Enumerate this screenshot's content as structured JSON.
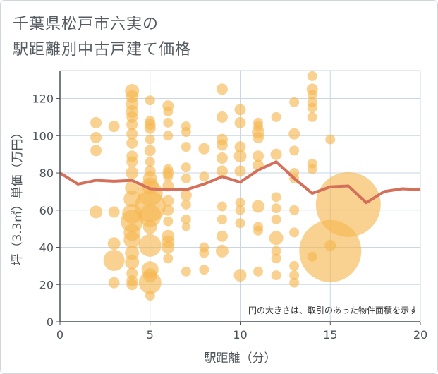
{
  "title_line1": "千葉県松戸市六実の",
  "title_line2": "駅距離別中古戸建て価格",
  "chart_data": {
    "type": "scatter",
    "xlabel": "駅距離（分）",
    "ylabel": "坪（3.3㎡）単価（万円）",
    "xlim": [
      0,
      20
    ],
    "ylim": [
      0,
      135
    ],
    "xticks": [
      0,
      5,
      10,
      15,
      20
    ],
    "yticks": [
      0,
      20,
      40,
      60,
      80,
      100,
      120
    ],
    "grid": true,
    "annotation": "円の大きさは、取引のあった物件面積を示す",
    "colors": {
      "bubble": "#f5b74f",
      "line": "#d4705a",
      "grid": "#c9d7e2",
      "axis": "#4a5057"
    },
    "bubbles": [
      [
        2,
        107,
        8
      ],
      [
        2,
        99,
        8
      ],
      [
        2,
        92,
        8
      ],
      [
        2,
        59,
        9
      ],
      [
        3,
        105,
        8
      ],
      [
        3,
        59,
        8
      ],
      [
        3,
        42,
        9
      ],
      [
        3,
        33,
        15
      ],
      [
        3,
        21,
        8
      ],
      [
        4,
        124,
        10
      ],
      [
        4,
        121,
        9
      ],
      [
        4,
        117,
        9
      ],
      [
        4,
        113,
        9
      ],
      [
        4,
        110,
        8
      ],
      [
        4,
        106,
        8
      ],
      [
        4,
        101,
        8
      ],
      [
        4,
        96,
        8
      ],
      [
        4,
        89,
        8
      ],
      [
        4,
        86,
        8
      ],
      [
        4,
        80,
        9
      ],
      [
        4,
        72,
        10
      ],
      [
        4,
        66,
        12
      ],
      [
        4,
        58,
        14
      ],
      [
        4,
        54,
        16
      ],
      [
        4,
        48,
        12
      ],
      [
        4,
        44,
        12
      ],
      [
        4,
        37,
        10
      ],
      [
        4,
        32,
        10
      ],
      [
        4,
        26,
        8
      ],
      [
        4,
        22,
        8
      ],
      [
        4,
        20,
        8
      ],
      [
        5,
        119,
        7
      ],
      [
        5,
        108,
        7
      ],
      [
        5,
        106,
        8
      ],
      [
        5,
        104,
        8
      ],
      [
        5,
        98,
        7
      ],
      [
        5,
        92,
        8
      ],
      [
        5,
        86,
        7
      ],
      [
        5,
        81,
        8
      ],
      [
        5,
        77,
        10
      ],
      [
        5,
        73,
        12
      ],
      [
        5,
        69,
        18
      ],
      [
        5,
        62,
        22
      ],
      [
        5,
        57,
        16
      ],
      [
        5,
        51,
        10
      ],
      [
        5,
        41,
        16
      ],
      [
        5,
        28,
        12
      ],
      [
        5,
        25,
        10
      ],
      [
        5,
        21,
        16
      ],
      [
        5,
        14,
        7
      ],
      [
        6,
        116,
        8
      ],
      [
        6,
        113,
        7
      ],
      [
        6,
        107,
        7
      ],
      [
        6,
        100,
        7
      ],
      [
        6,
        82,
        7
      ],
      [
        6,
        80,
        8
      ],
      [
        6,
        78,
        7
      ],
      [
        6,
        73,
        8
      ],
      [
        6,
        65,
        8
      ],
      [
        6,
        60,
        8
      ],
      [
        6,
        54,
        7
      ],
      [
        6,
        46,
        9
      ],
      [
        6,
        43,
        9
      ],
      [
        6,
        40,
        9
      ],
      [
        6,
        34,
        7
      ],
      [
        7,
        105,
        7
      ],
      [
        7,
        102,
        7
      ],
      [
        7,
        94,
        7
      ],
      [
        7,
        83,
        7
      ],
      [
        7,
        77,
        7
      ],
      [
        7,
        68,
        8
      ],
      [
        7,
        63,
        7
      ],
      [
        7,
        55,
        7
      ],
      [
        7,
        51,
        6
      ],
      [
        7,
        27,
        7
      ],
      [
        8,
        93,
        8
      ],
      [
        8,
        78,
        7
      ],
      [
        8,
        40,
        7
      ],
      [
        8,
        37,
        7
      ],
      [
        8,
        28,
        7
      ],
      [
        9,
        125,
        8
      ],
      [
        9,
        110,
        8
      ],
      [
        9,
        98,
        8
      ],
      [
        9,
        95,
        8
      ],
      [
        9,
        88,
        8
      ],
      [
        9,
        81,
        8
      ],
      [
        9,
        62,
        7
      ],
      [
        9,
        55,
        7
      ],
      [
        9,
        46,
        8
      ],
      [
        9,
        38,
        9
      ],
      [
        10,
        114,
        8
      ],
      [
        10,
        107,
        8
      ],
      [
        10,
        94,
        8
      ],
      [
        10,
        89,
        9
      ],
      [
        10,
        81,
        8
      ],
      [
        10,
        64,
        7
      ],
      [
        10,
        60,
        7
      ],
      [
        10,
        53,
        7
      ],
      [
        10,
        25,
        9
      ],
      [
        11,
        107,
        7
      ],
      [
        11,
        105,
        7
      ],
      [
        11,
        102,
        9
      ],
      [
        11,
        99,
        8
      ],
      [
        11,
        89,
        8
      ],
      [
        11,
        84,
        8
      ],
      [
        11,
        62,
        9
      ],
      [
        11,
        51,
        7
      ],
      [
        11,
        49,
        7
      ],
      [
        11,
        27,
        7
      ],
      [
        12,
        110,
        7
      ],
      [
        12,
        90,
        8
      ],
      [
        12,
        67,
        7
      ],
      [
        12,
        61,
        7
      ],
      [
        12,
        55,
        7
      ],
      [
        12,
        45,
        10
      ],
      [
        12,
        38,
        7
      ],
      [
        12,
        34,
        7
      ],
      [
        12,
        25,
        7
      ],
      [
        13,
        118,
        7
      ],
      [
        13,
        101,
        8
      ],
      [
        13,
        92,
        7
      ],
      [
        13,
        80,
        7
      ],
      [
        13,
        77,
        7
      ],
      [
        13,
        60,
        7
      ],
      [
        13,
        48,
        7
      ],
      [
        13,
        30,
        7
      ],
      [
        13,
        25,
        7
      ],
      [
        13,
        21,
        7
      ],
      [
        14,
        132,
        7
      ],
      [
        14,
        125,
        8
      ],
      [
        14,
        122,
        7
      ],
      [
        14,
        118,
        7
      ],
      [
        14,
        115,
        7
      ],
      [
        14,
        110,
        7
      ],
      [
        14,
        85,
        7
      ],
      [
        14,
        82,
        7
      ],
      [
        14,
        35,
        7
      ],
      [
        15,
        98,
        7
      ],
      [
        15,
        41,
        8
      ],
      [
        15,
        38,
        44
      ],
      [
        16,
        63,
        46
      ]
    ],
    "line": {
      "x": [
        0,
        1,
        2,
        3,
        4,
        5,
        6,
        7,
        8,
        9,
        10,
        11,
        12,
        13,
        14,
        15,
        16,
        17,
        18,
        19,
        20
      ],
      "y": [
        80,
        74,
        76,
        75.5,
        76,
        71.5,
        71,
        71,
        74,
        78,
        75,
        81.5,
        86,
        77,
        69,
        72.5,
        73,
        64,
        70,
        71.5,
        71
      ]
    }
  }
}
